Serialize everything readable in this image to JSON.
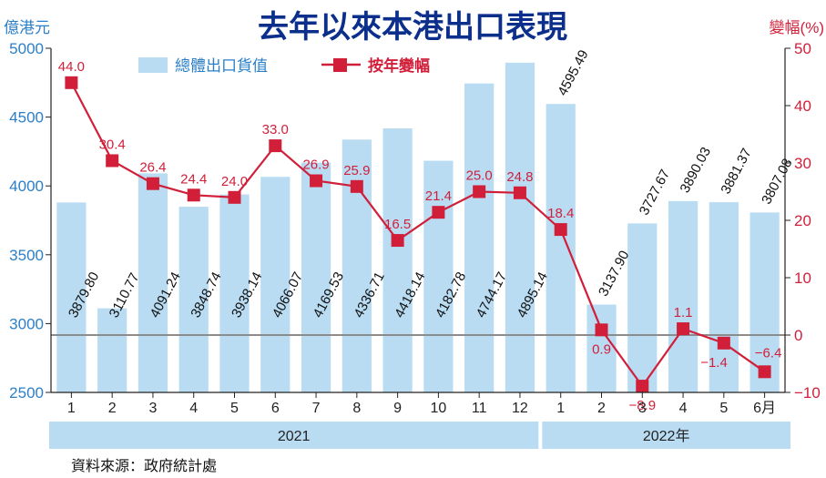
{
  "chart_data": {
    "type": "bar+line",
    "title": "去年以來本港出口表現",
    "left_axis_label": "億港元",
    "right_axis_label": "變幅(%)",
    "left_ylim": [
      2500,
      5000
    ],
    "left_ticks": [
      "2500",
      "3000",
      "3500",
      "4000",
      "4500",
      "5000"
    ],
    "right_ylim": [
      -10,
      50
    ],
    "right_ticks": [
      "-10",
      "0",
      "10",
      "20",
      "30",
      "40",
      "50"
    ],
    "categories": [
      "1",
      "2",
      "3",
      "4",
      "5",
      "6",
      "7",
      "8",
      "9",
      "10",
      "11",
      "12",
      "1",
      "2",
      "3",
      "4",
      "5",
      "6月"
    ],
    "year_groups": [
      {
        "label": "2021",
        "count": 12
      },
      {
        "label": "2022年",
        "count": 6
      }
    ],
    "series": [
      {
        "name": "總體出口貨值",
        "kind": "bar",
        "color": "#b9dcf3",
        "values": [
          3879.8,
          3110.77,
          4091.24,
          3848.74,
          3938.14,
          4066.07,
          4169.53,
          4336.71,
          4418.14,
          4182.78,
          4744.17,
          4895.14,
          4595.49,
          3137.9,
          3727.67,
          3890.03,
          3881.37,
          3807.08
        ],
        "labels": [
          "3879.80",
          "3110.77",
          "4091.24",
          "3848.74",
          "3938.14",
          "4066.07",
          "4169.53",
          "4336.71",
          "4418.14",
          "4182.78",
          "4744.17",
          "4895.14",
          "4595.49",
          "3137.90",
          "3727.67",
          "3890.03",
          "3881.37",
          "3807.08"
        ]
      },
      {
        "name": "按年變幅",
        "kind": "line",
        "color": "#d11f3a",
        "values": [
          44.0,
          30.4,
          26.4,
          24.4,
          24.0,
          33.0,
          26.9,
          25.9,
          16.5,
          21.4,
          25.0,
          24.8,
          18.4,
          0.9,
          -8.9,
          1.1,
          -1.4,
          -6.4
        ],
        "labels": [
          "44.0",
          "30.4",
          "26.4",
          "24.4",
          "24.0",
          "33.0",
          "26.9",
          "25.9",
          "16.5",
          "21.4",
          "25.0",
          "24.8",
          "18.4",
          "0.9",
          "−8.9",
          "1.1",
          "−1.4",
          "−6.4"
        ]
      }
    ],
    "legend": [
      "總體出口貨值",
      "按年變幅"
    ],
    "source": "資料來源：政府統計處"
  }
}
